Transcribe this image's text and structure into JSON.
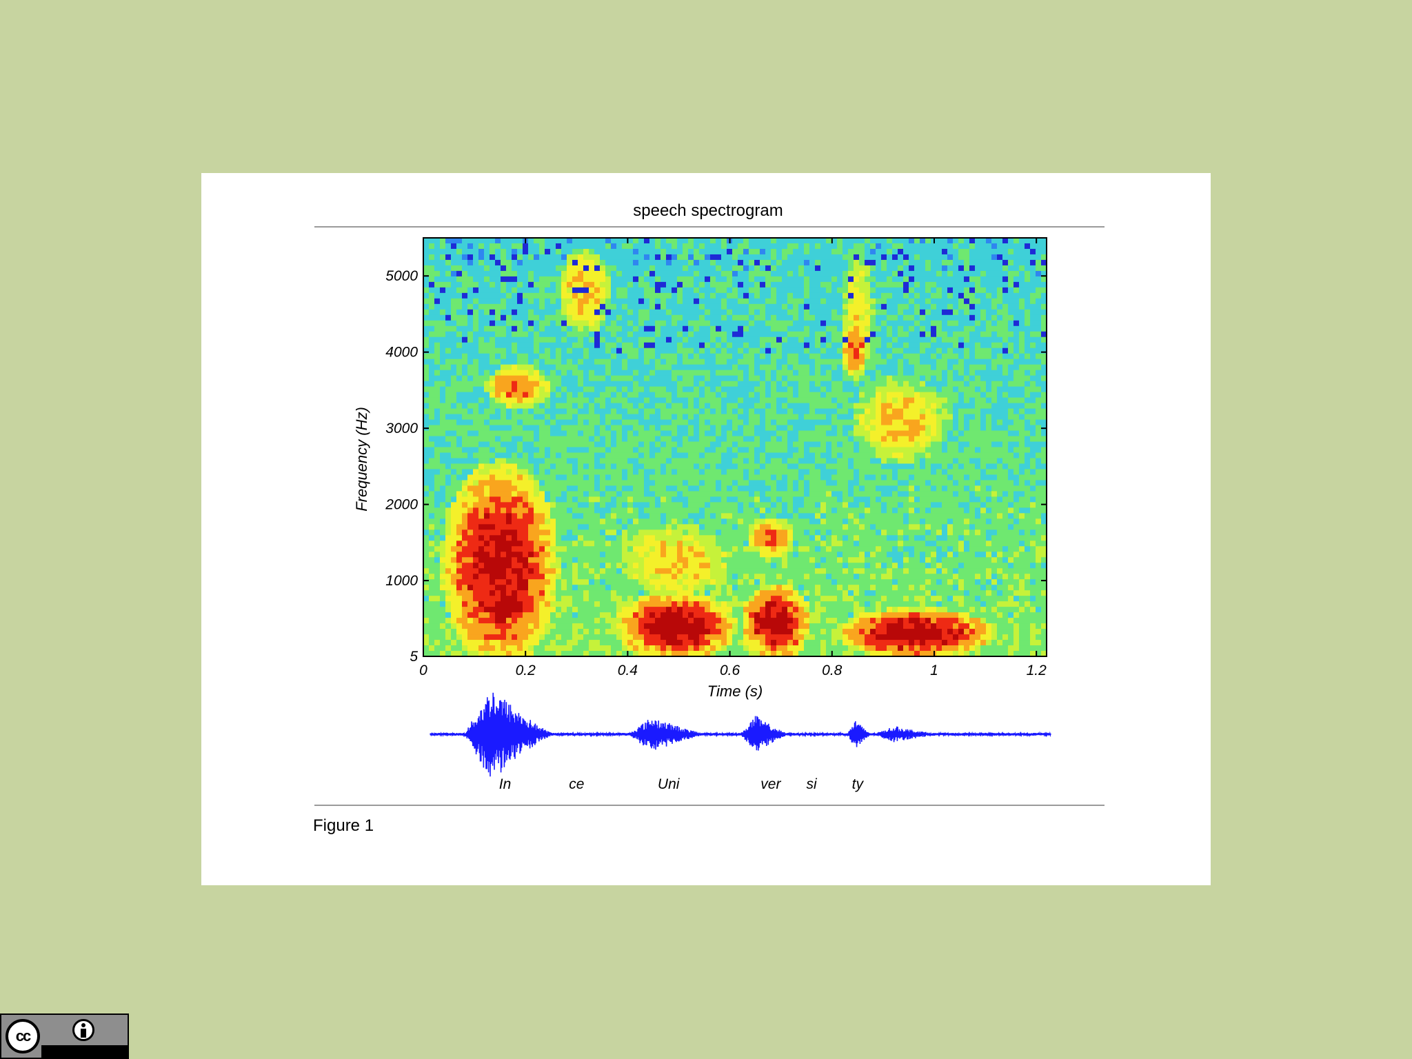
{
  "figure": {
    "caption": "Figure 1"
  },
  "chart_data": {
    "type": "heatmap",
    "title": "speech spectrogram",
    "xlabel": "Time (s)",
    "ylabel": "Frequency (Hz)",
    "xlim": [
      0,
      1.22
    ],
    "ylim": [
      5,
      5500
    ],
    "x_ticks": [
      {
        "value": 0,
        "label": "0"
      },
      {
        "value": 0.2,
        "label": "0.2"
      },
      {
        "value": 0.4,
        "label": "0.4"
      },
      {
        "value": 0.6,
        "label": "0.6"
      },
      {
        "value": 0.8,
        "label": "0.8"
      },
      {
        "value": 1.0,
        "label": "1"
      },
      {
        "value": 1.2,
        "label": "1.2"
      }
    ],
    "y_ticks": [
      {
        "value": 5,
        "label": "5"
      },
      {
        "value": 1000,
        "label": "1000"
      },
      {
        "value": 2000,
        "label": "2000"
      },
      {
        "value": 3000,
        "label": "3000"
      },
      {
        "value": 4000,
        "label": "4000"
      },
      {
        "value": 5000,
        "label": "5000"
      }
    ],
    "colormap": [
      "#1e2ad6",
      "#2f86f0",
      "#3fd0d8",
      "#6fe870",
      "#c6f23a",
      "#f4f02a",
      "#f9a51e",
      "#ee2a14",
      "#b80808"
    ],
    "energy_regions": [
      {
        "t0": 0.05,
        "t1": 0.25,
        "f0": 5,
        "f1": 2400,
        "level": 0.95
      },
      {
        "t0": 0.1,
        "t1": 0.22,
        "f0": 400,
        "f1": 900,
        "level": 1.0
      },
      {
        "t0": 0.13,
        "t1": 0.24,
        "f0": 3300,
        "f1": 3800,
        "level": 0.8
      },
      {
        "t0": 0.27,
        "t1": 0.36,
        "f0": 4300,
        "f1": 5300,
        "level": 0.72
      },
      {
        "t0": 0.39,
        "t1": 0.6,
        "f0": 5,
        "f1": 800,
        "level": 0.98
      },
      {
        "t0": 0.39,
        "t1": 0.6,
        "f0": 800,
        "f1": 1700,
        "level": 0.68
      },
      {
        "t0": 0.63,
        "t1": 0.75,
        "f0": 5,
        "f1": 900,
        "level": 0.97
      },
      {
        "t0": 0.64,
        "t1": 0.72,
        "f0": 1300,
        "f1": 1800,
        "level": 0.82
      },
      {
        "t0": 0.82,
        "t1": 0.88,
        "f0": 3700,
        "f1": 5300,
        "level": 0.62
      },
      {
        "t0": 0.82,
        "t1": 0.87,
        "f0": 3700,
        "f1": 4400,
        "level": 0.8
      },
      {
        "t0": 0.83,
        "t1": 1.1,
        "f0": 5,
        "f1": 600,
        "level": 0.97
      },
      {
        "t0": 0.85,
        "t1": 1.02,
        "f0": 2600,
        "f1": 3600,
        "level": 0.7
      }
    ],
    "waveform": {
      "color": "#1a1aff",
      "syllable_labels": [
        {
          "t": 0.16,
          "text": "In"
        },
        {
          "t": 0.3,
          "text": "ce"
        },
        {
          "t": 0.48,
          "text": "Uni"
        },
        {
          "t": 0.68,
          "text": "ver"
        },
        {
          "t": 0.76,
          "text": "si"
        },
        {
          "t": 0.85,
          "text": "ty"
        }
      ]
    }
  }
}
